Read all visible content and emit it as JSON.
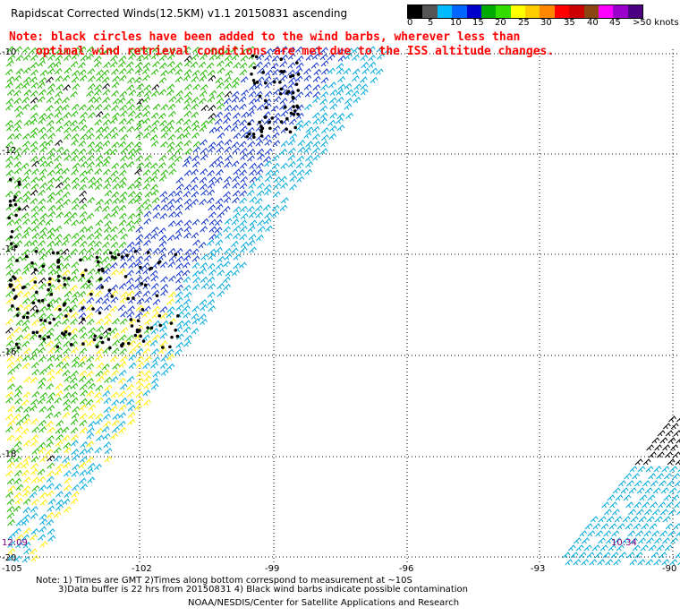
{
  "header": {
    "title": "Rapidscat Corrected Winds(12.5KM) v1.1 20150831 ascending",
    "note_line1": "Note: black circles have been added to the wind barbs, wherever less than",
    "note_line2": "optimal wind retrieval conditions are met due to the ISS altitude changes."
  },
  "legend": {
    "labels": [
      "0",
      "5",
      "10",
      "15",
      "20",
      "25",
      "30",
      "35",
      "40",
      "45",
      ">50 knots"
    ],
    "colors": [
      "#000000",
      "#555555",
      "#00bbff",
      "#0066ff",
      "#0000cc",
      "#00aa00",
      "#33dd00",
      "#ffff00",
      "#ffcc00",
      "#ff8800",
      "#ff0000",
      "#cc0000",
      "#8b4513",
      "#ff00ff",
      "#9900cc",
      "#4b0082"
    ]
  },
  "axes": {
    "lon_labels": [
      "-105",
      "-102",
      "-99",
      "-96",
      "-93",
      "-90"
    ],
    "lat_labels": [
      "-10",
      "-12",
      "-14",
      "-16",
      "-18",
      "-20"
    ]
  },
  "times": {
    "left": "12:09",
    "right": "10:34"
  },
  "footer": {
    "line1": "Note: 1) Times are GMT 2)Times along bottom correspond to measurement at ~10S",
    "line2": "3)Data buffer is 22 hrs from 20150831 4) Black wind barbs indicate possible contamination",
    "line3": "NOAA/NESDIS/Center for Satellite Applications and Research"
  },
  "map_colors": {
    "green": "#22bb00",
    "yellow": "#ffee00",
    "blue": "#1133cc",
    "cyan": "#00aadd",
    "black": "#000000"
  }
}
